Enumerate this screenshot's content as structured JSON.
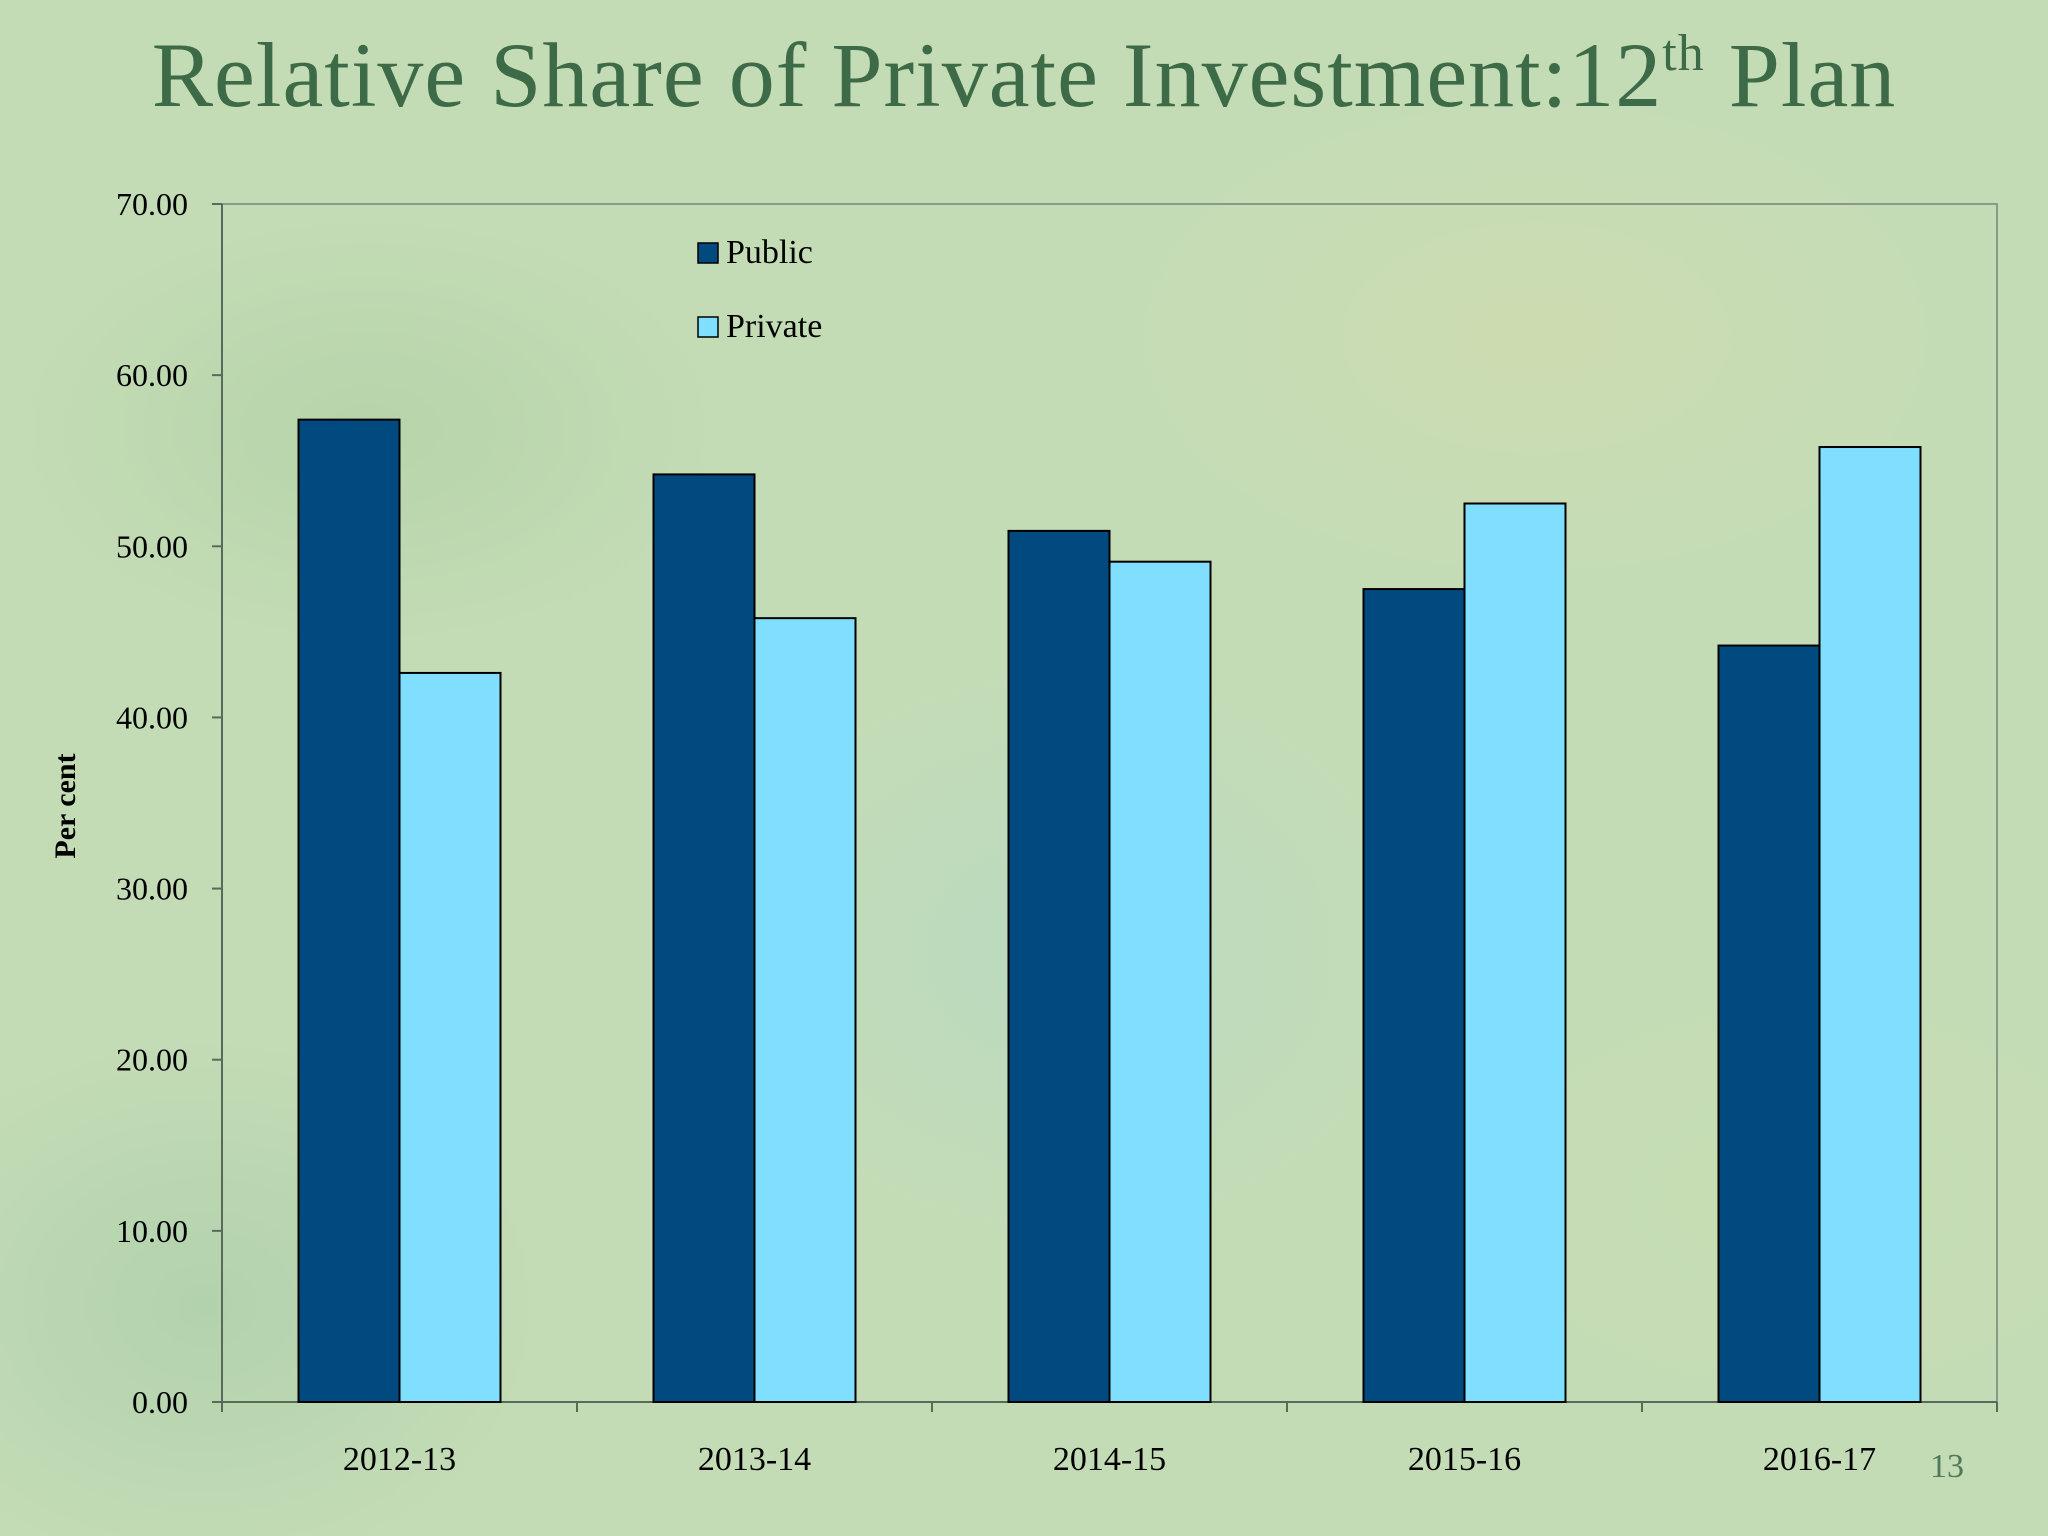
{
  "title": {
    "main": "Relative Share of Private Investment:12",
    "superscript": "th",
    "suffix": " Plan"
  },
  "page_number": "13",
  "colors": {
    "public": "#004a80",
    "private": "#80deff",
    "title": "#3d6a47"
  },
  "chart_data": {
    "type": "bar",
    "categories": [
      "2012-13",
      "2013-14",
      "2014-15",
      "2015-16",
      "2016-17"
    ],
    "series": [
      {
        "name": "Public",
        "values": [
          57.4,
          54.2,
          50.9,
          47.5,
          44.2
        ]
      },
      {
        "name": "Private",
        "values": [
          42.6,
          45.8,
          49.1,
          52.5,
          55.8
        ]
      }
    ],
    "ylabel": "Per cent",
    "ylim": [
      0,
      70
    ],
    "yticks": [
      "0.00",
      "10.00",
      "20.00",
      "30.00",
      "40.00",
      "50.00",
      "60.00",
      "70.00"
    ],
    "grid": false,
    "legend_position": "top-left"
  }
}
